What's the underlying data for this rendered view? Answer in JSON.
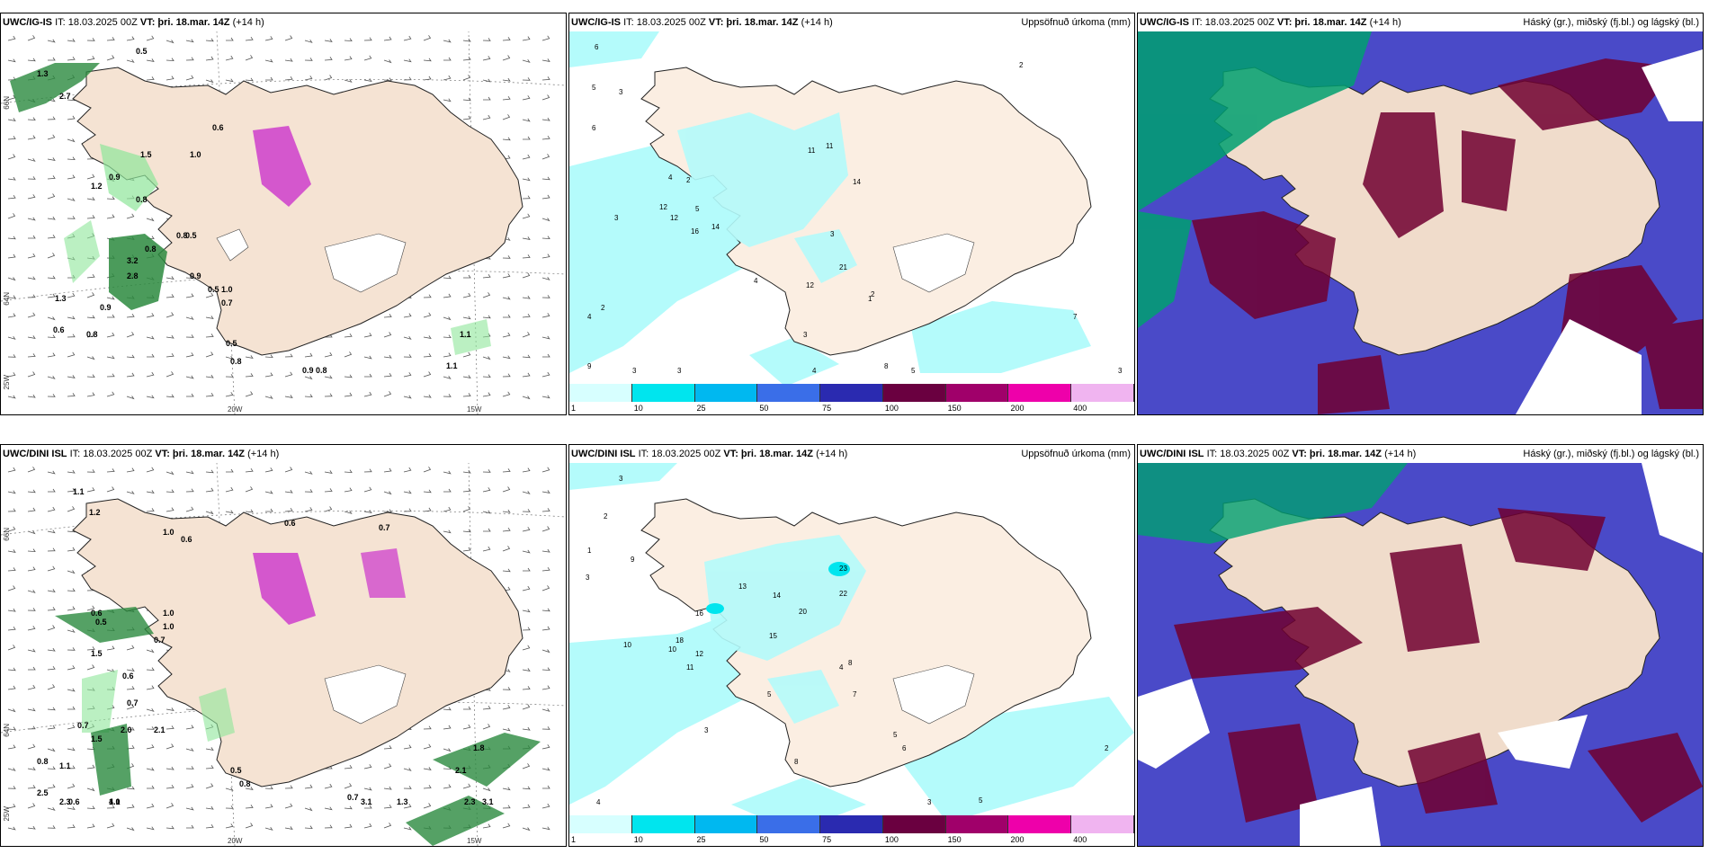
{
  "panels": {
    "p1": {
      "source": "UWC/IG-IS",
      "meta": "IT: 18.03.2025 00Z",
      "vt_label": "VT:",
      "vt_value": "þri. 18.mar. 14Z",
      "lead": "(+14 h)",
      "legend": ""
    },
    "p2": {
      "source": "UWC/IG-IS",
      "meta": "IT: 18.03.2025 00Z",
      "vt_label": "VT:",
      "vt_value": "þri. 18.mar. 14Z",
      "lead": "(+14 h)",
      "legend": "Uppsöfnuð úrkoma (mm)"
    },
    "p3": {
      "source": "UWC/IG-IS",
      "meta": "IT: 18.03.2025 00Z",
      "vt_label": "VT:",
      "vt_value": "þri. 18.mar. 14Z",
      "lead": "(+14 h)",
      "legend": "Háský (gr.), miðský (fj.bl.) og lágský (bl.)"
    },
    "p4": {
      "source": "UWC/DINI ISL",
      "meta": "IT: 18.03.2025 00Z",
      "vt_label": "VT:",
      "vt_value": "þri. 18.mar. 14Z",
      "lead": "(+14 h)",
      "legend": ""
    },
    "p5": {
      "source": "UWC/DINI ISL",
      "meta": "IT: 18.03.2025 00Z",
      "vt_label": "VT:",
      "vt_value": "þri. 18.mar. 14Z",
      "lead": "(+14 h)",
      "legend": "Uppsöfnuð úrkoma (mm)"
    },
    "p6": {
      "source": "UWC/DINI ISL",
      "meta": "IT: 18.03.2025 00Z",
      "vt_label": "VT:",
      "vt_value": "þri. 18.mar. 14Z",
      "lead": "(+14 h)",
      "legend": "Háský (gr.), miðský (fj.bl.) og lágský (bl.)"
    }
  },
  "axis_labels": {
    "lat66": "66N",
    "lat64": "64N",
    "lon25": "25W",
    "lon20": "20W",
    "lon15": "15W"
  },
  "colorbar": {
    "ticks": [
      "1",
      "10",
      "25",
      "50",
      "75",
      "100",
      "150",
      "200",
      "400"
    ],
    "colors": [
      "#d7ffff",
      "#00e5ee",
      "#00b8f0",
      "#3a6ee8",
      "#2a2ab0",
      "#6a0040",
      "#a0006a",
      "#ee00aa",
      "#f0b4f0"
    ]
  },
  "colors": {
    "land": "#f5e3d3",
    "sea": "#ffffff",
    "precip_light": "#b4fbfb",
    "cloud_high": "#00a070",
    "cloud_mid": "#4040c0",
    "cloud_low": "#700030"
  },
  "values": {
    "p1": [
      "0.5",
      "1.3",
      "2.7",
      "1.2",
      "0.6",
      "1.5",
      "0.9",
      "0.8",
      "1.3",
      "0.8",
      "0.8",
      "3.2",
      "2.8",
      "0.9",
      "0.5",
      "1.0",
      "0.7",
      "0.9",
      "0.6",
      "0.8",
      "0.5",
      "0.8",
      "0.9",
      "0.8",
      "1.1",
      "1.1",
      "1.0",
      "0.5"
    ],
    "p2": [
      "6",
      "5",
      "3",
      "6",
      "3",
      "4",
      "2",
      "12",
      "5",
      "14",
      "16",
      "3",
      "11",
      "11",
      "14",
      "2",
      "12",
      "21",
      "12",
      "2",
      "1",
      "4",
      "9",
      "3",
      "4",
      "2",
      "7",
      "3",
      "3",
      "8",
      "4",
      "5",
      "3"
    ],
    "p4": [
      "1.1",
      "1.2",
      "1.0",
      "0.6",
      "0.6",
      "0.7",
      "1.0",
      "0.6",
      "0.5",
      "0.7",
      "1.5",
      "1.0",
      "0.6",
      "0.7",
      "2.0",
      "0.7",
      "2.1",
      "1.5",
      "0.8",
      "1.1",
      "2.5",
      "2.3",
      "1.1",
      "0.6",
      "4.0",
      "0.5",
      "0.8",
      "0.7",
      "3.1",
      "1.3",
      "1.8",
      "2.1",
      "3.1",
      "2.3"
    ],
    "p5": [
      "3",
      "2",
      "1",
      "3",
      "9",
      "13",
      "16",
      "23",
      "22",
      "20",
      "14",
      "15",
      "18",
      "12",
      "10",
      "10",
      "11",
      "8",
      "4",
      "7",
      "5",
      "3",
      "5",
      "6",
      "3",
      "5",
      "2",
      "4",
      "8"
    ]
  }
}
